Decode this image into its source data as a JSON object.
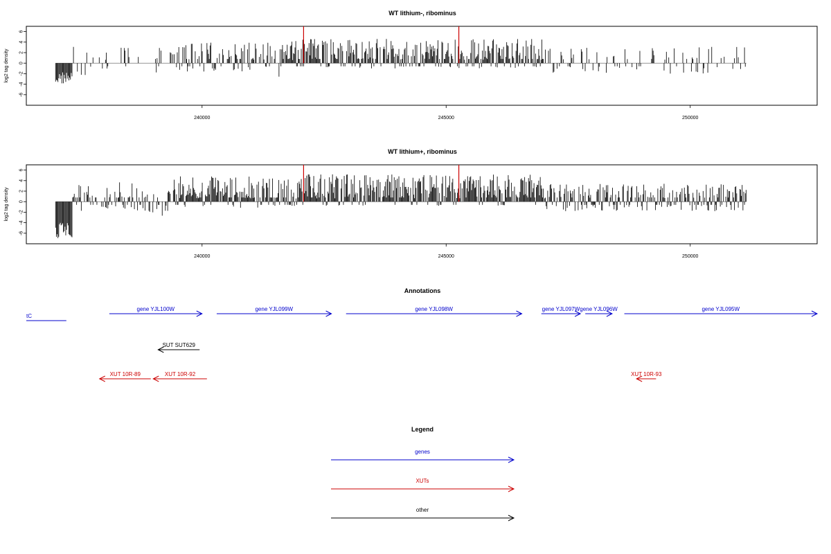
{
  "chart_data": [
    {
      "type": "bar",
      "title": "WT lithium-, ribominus",
      "ylabel": "log2 tag density",
      "xlim": [
        236400,
        252600
      ],
      "ylim": [
        -8,
        7
      ],
      "x_ticks": [
        240000,
        245000,
        250000
      ],
      "y_ticks": [
        -6,
        -4,
        -2,
        0,
        2,
        4,
        6
      ],
      "data_range": [
        237000,
        251150
      ],
      "markers": [
        {
          "x": 242080,
          "color": "#cc0000"
        },
        {
          "x": 245260,
          "color": "#cc0000"
        }
      ],
      "series": [
        {
          "name": "",
          "segments": [
            {
              "start": 237000,
              "end": 237350,
              "mean": -2.8,
              "amp": 1.2,
              "density": 1.0
            },
            {
              "start": 237350,
              "end": 239300,
              "mean": 0.4,
              "amp": 2.8,
              "density": 0.22
            },
            {
              "start": 239300,
              "end": 241400,
              "mean": 1.2,
              "amp": 2.8,
              "density": 0.55
            },
            {
              "start": 241400,
              "end": 241600,
              "mean": -0.5,
              "amp": 3.0,
              "density": 0.5
            },
            {
              "start": 241600,
              "end": 247000,
              "mean": 1.8,
              "amp": 2.8,
              "density": 0.85
            },
            {
              "start": 247000,
              "end": 251150,
              "mean": 0.6,
              "amp": 2.6,
              "density": 0.3
            }
          ]
        }
      ]
    },
    {
      "type": "bar",
      "title": "WT lithium+, ribominus",
      "ylabel": "log2 tag density",
      "xlim": [
        236400,
        252600
      ],
      "ylim": [
        -8,
        7
      ],
      "x_ticks": [
        240000,
        245000,
        250000
      ],
      "y_ticks": [
        -6,
        -4,
        -2,
        0,
        2,
        4,
        6
      ],
      "data_range": [
        237000,
        251150
      ],
      "markers": [
        {
          "x": 242080,
          "color": "#cc0000"
        },
        {
          "x": 245260,
          "color": "#cc0000"
        }
      ],
      "series": [
        {
          "name": "",
          "segments": [
            {
              "start": 237000,
              "end": 237350,
              "mean": -5.5,
              "amp": 1.5,
              "density": 1.0
            },
            {
              "start": 237350,
              "end": 238800,
              "mean": 1.0,
              "amp": 2.8,
              "density": 0.65
            },
            {
              "start": 238800,
              "end": 239300,
              "mean": 0.2,
              "amp": 3.0,
              "density": 0.45
            },
            {
              "start": 239300,
              "end": 242000,
              "mean": 1.8,
              "amp": 3.0,
              "density": 0.9
            },
            {
              "start": 242000,
              "end": 247000,
              "mean": 2.2,
              "amp": 3.0,
              "density": 0.9
            },
            {
              "start": 247000,
              "end": 251150,
              "mean": 0.8,
              "amp": 2.6,
              "density": 0.75
            }
          ]
        }
      ]
    }
  ],
  "annotations": {
    "title": "Annotations",
    "xlim": [
      236400,
      252600
    ],
    "items": [
      {
        "label": "tC",
        "start": 236400,
        "end": 237220,
        "strand": "none",
        "row": 1,
        "color": "#0000cc",
        "label_anchor": "start"
      },
      {
        "label": "gene YJL100W",
        "start": 238100,
        "end": 240000,
        "strand": "+",
        "row": 0,
        "color": "#0000cc"
      },
      {
        "label": "gene YJL099W",
        "start": 240300,
        "end": 242650,
        "strand": "+",
        "row": 0,
        "color": "#0000cc"
      },
      {
        "label": "gene YJL098W",
        "start": 242950,
        "end": 246550,
        "strand": "+",
        "row": 0,
        "color": "#0000cc"
      },
      {
        "label": "gene YJL097W",
        "start": 246950,
        "end": 247750,
        "strand": "+",
        "row": 0,
        "color": "#0000cc"
      },
      {
        "label": "gene YJL096W",
        "start": 247850,
        "end": 248400,
        "strand": "+",
        "row": 0,
        "color": "#0000cc"
      },
      {
        "label": "gene YJL095W",
        "start": 248650,
        "end": 252600,
        "strand": "+",
        "row": 0,
        "color": "#0000cc"
      },
      {
        "label": "SUT SUT629",
        "start": 239100,
        "end": 239950,
        "strand": "-",
        "row": 2,
        "color": "#000000"
      },
      {
        "label": "XUT 10R-89",
        "start": 237900,
        "end": 238950,
        "strand": "-",
        "row": 3,
        "color": "#cc0000"
      },
      {
        "label": "XUT 10R-92",
        "start": 239000,
        "end": 240100,
        "strand": "-",
        "row": 3,
        "color": "#cc0000"
      },
      {
        "label": "XUT 10R-93",
        "start": 248900,
        "end": 249300,
        "strand": "-",
        "row": 3,
        "color": "#cc0000"
      }
    ]
  },
  "legend": {
    "title": "Legend",
    "items": [
      {
        "label": "genes",
        "color": "#0000cc"
      },
      {
        "label": "XUTs",
        "color": "#cc0000"
      },
      {
        "label": "other",
        "color": "#000000"
      }
    ]
  }
}
